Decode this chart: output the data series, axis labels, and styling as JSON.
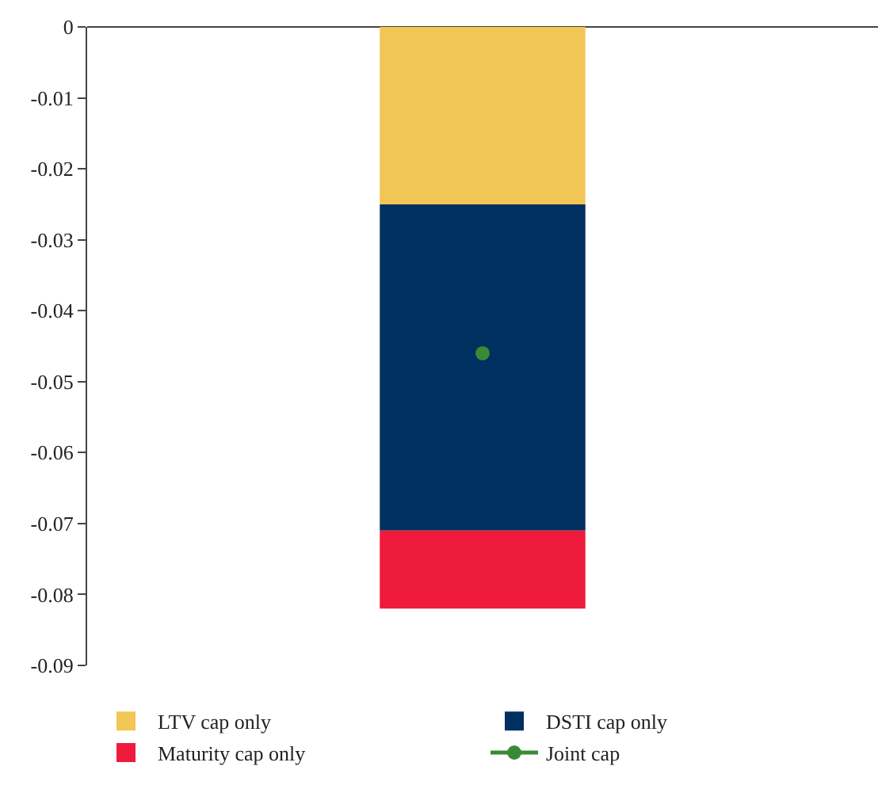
{
  "chart_data": {
    "type": "bar",
    "stacked": true,
    "categories": [
      null
    ],
    "series": [
      {
        "name": "LTV cap only",
        "color": "#f2c654",
        "values": [
          -0.025
        ]
      },
      {
        "name": "DSTI cap only",
        "color": "#00305f",
        "values": [
          -0.046
        ]
      },
      {
        "name": "Maturity cap only",
        "color": "#ee1b3c",
        "values": [
          -0.011
        ]
      },
      {
        "name": "Joint cap",
        "color": "#3a8a35",
        "type": "line",
        "marker": "circle",
        "values": [
          -0.046
        ]
      }
    ],
    "ylim": [
      -0.09,
      0
    ],
    "yticks": [
      0,
      -0.01,
      -0.02,
      -0.03,
      -0.04,
      -0.05,
      -0.06,
      -0.07,
      -0.08,
      -0.09
    ],
    "legend": "bottom"
  }
}
